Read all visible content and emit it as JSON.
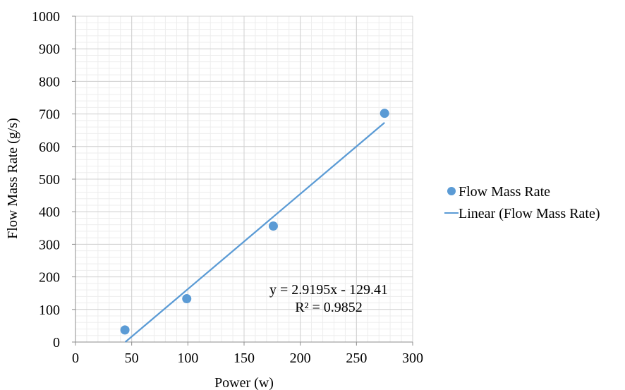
{
  "chart_data": {
    "type": "scatter",
    "xlabel": "Power (w)",
    "ylabel": "Flow Mass Rate (g/s)",
    "xlim": [
      0,
      300
    ],
    "ylim": [
      0,
      1000
    ],
    "x_ticks": [
      0,
      50,
      100,
      150,
      200,
      250,
      300
    ],
    "y_ticks": [
      0,
      100,
      200,
      300,
      400,
      500,
      600,
      700,
      800,
      900,
      1000
    ],
    "grid": true,
    "minor_grid": true,
    "legend_position": "right",
    "series": [
      {
        "name": "Flow Mass Rate",
        "kind": "points",
        "color": "#5b9bd5",
        "x": [
          44,
          99,
          176,
          275
        ],
        "y": [
          37,
          133,
          356,
          702
        ]
      },
      {
        "name": "Linear (Flow Mass Rate)",
        "kind": "trendline",
        "color": "#5b9bd5",
        "x": [
          44.3,
          275
        ],
        "y": [
          0,
          673.4
        ]
      }
    ],
    "annotations": {
      "equation": "y = 2.9195x - 129.41",
      "r_squared": "R² = 0.9852"
    }
  }
}
